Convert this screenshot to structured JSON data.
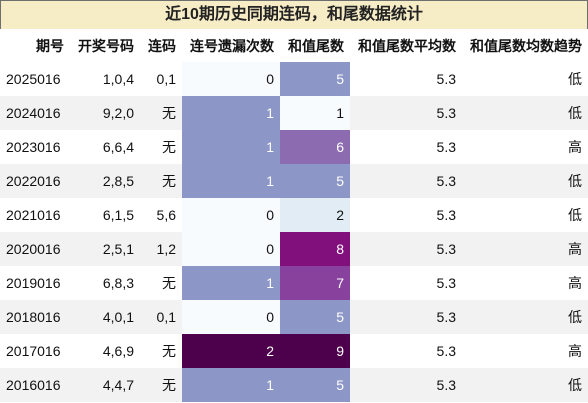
{
  "title": "近10期历史同期连码，和尾数据统计",
  "headers": [
    "期号",
    "开奖号码",
    "连码",
    "连号遗漏次数",
    "和值尾数",
    "和值尾数平均数",
    "和值尾数均数趋势"
  ],
  "colors": {
    "title_bg": "#f6ecc6",
    "heat_scale": [
      "#f7fbfd",
      "#e1ecf4",
      "#8c97c7",
      "#8c6bb1",
      "#88419d",
      "#810f7c",
      "#4d004b"
    ]
  },
  "rows": [
    {
      "period": "2025016",
      "numbers": "1,0,4",
      "lianma": "0,1",
      "miss": 0,
      "tail": 5,
      "avg": "5.3",
      "trend": "低"
    },
    {
      "period": "2024016",
      "numbers": "9,2,0",
      "lianma": "无",
      "miss": 1,
      "tail": 1,
      "avg": "5.3",
      "trend": "低"
    },
    {
      "period": "2023016",
      "numbers": "6,6,4",
      "lianma": "无",
      "miss": 1,
      "tail": 6,
      "avg": "5.3",
      "trend": "高"
    },
    {
      "period": "2022016",
      "numbers": "2,8,5",
      "lianma": "无",
      "miss": 1,
      "tail": 5,
      "avg": "5.3",
      "trend": "低"
    },
    {
      "period": "2021016",
      "numbers": "6,1,5",
      "lianma": "5,6",
      "miss": 0,
      "tail": 2,
      "avg": "5.3",
      "trend": "低"
    },
    {
      "period": "2020016",
      "numbers": "2,5,1",
      "lianma": "1,2",
      "miss": 0,
      "tail": 8,
      "avg": "5.3",
      "trend": "高"
    },
    {
      "period": "2019016",
      "numbers": "6,8,3",
      "lianma": "无",
      "miss": 1,
      "tail": 7,
      "avg": "5.3",
      "trend": "高"
    },
    {
      "period": "2018016",
      "numbers": "4,0,1",
      "lianma": "0,1",
      "miss": 0,
      "tail": 5,
      "avg": "5.3",
      "trend": "低"
    },
    {
      "period": "2017016",
      "numbers": "4,6,9",
      "lianma": "无",
      "miss": 2,
      "tail": 9,
      "avg": "5.3",
      "trend": "高"
    },
    {
      "period": "2016016",
      "numbers": "4,4,7",
      "lianma": "无",
      "miss": 1,
      "tail": 5,
      "avg": "5.3",
      "trend": "低"
    }
  ]
}
